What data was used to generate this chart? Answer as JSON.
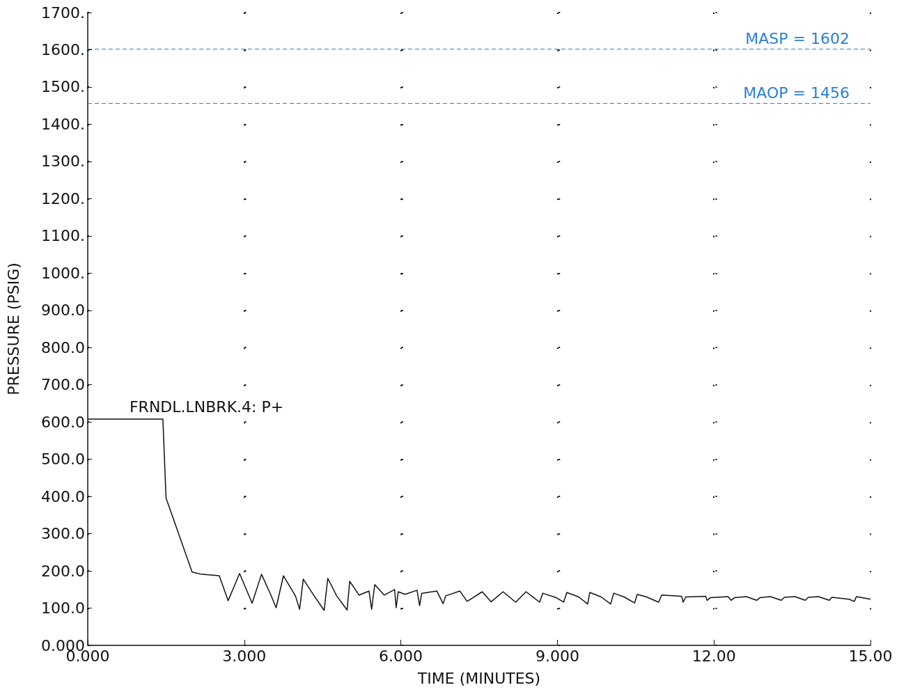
{
  "chart_data": {
    "type": "line",
    "xlabel": "TIME (MINUTES)",
    "ylabel": "PRESSURE (PSIG)",
    "xlim": [
      0,
      15
    ],
    "xticks": [
      {
        "value": 0,
        "label": "0.000"
      },
      {
        "value": 3,
        "label": "3.000"
      },
      {
        "value": 6,
        "label": "6.000"
      },
      {
        "value": 9,
        "label": "9.000"
      },
      {
        "value": 12,
        "label": "12.00"
      },
      {
        "value": 15,
        "label": "15.00"
      }
    ],
    "ylim": [
      0,
      1700
    ],
    "yticks": [
      {
        "value": 0,
        "label": "0.000"
      },
      {
        "value": 100,
        "label": "100.0"
      },
      {
        "value": 200,
        "label": "200.0"
      },
      {
        "value": 300,
        "label": "300.0"
      },
      {
        "value": 400,
        "label": "400.0"
      },
      {
        "value": 500,
        "label": "500.0"
      },
      {
        "value": 600,
        "label": "600.0"
      },
      {
        "value": 700,
        "label": "700.0"
      },
      {
        "value": 800,
        "label": "800.0"
      },
      {
        "value": 900,
        "label": "900.0"
      },
      {
        "value": 1000,
        "label": "1000."
      },
      {
        "value": 1100,
        "label": "1100."
      },
      {
        "value": 1200,
        "label": "1200."
      },
      {
        "value": 1300,
        "label": "1300."
      },
      {
        "value": 1400,
        "label": "1400."
      },
      {
        "value": 1500,
        "label": "1500."
      },
      {
        "value": 1600,
        "label": "1600."
      },
      {
        "value": 1700,
        "label": "1700."
      }
    ],
    "grid": true,
    "marker": "none",
    "line_style": "solid",
    "series": [
      {
        "color": "#111111",
        "x": [
          0,
          1.44,
          1.5,
          2.0,
          2.18,
          2.52,
          2.69,
          2.91,
          3.15,
          3.33,
          3.51,
          3.61,
          3.75,
          3.98,
          4.06,
          4.13,
          4.33,
          4.53,
          4.6,
          4.77,
          4.97,
          5.02,
          5.2,
          5.39,
          5.44,
          5.5,
          5.68,
          5.88,
          5.91,
          5.95,
          6.08,
          6.31,
          6.36,
          6.4,
          6.69,
          6.81,
          6.86,
          7.13,
          7.27,
          7.56,
          7.73,
          7.96,
          8.2,
          8.4,
          8.66,
          8.72,
          8.98,
          9.12,
          9.18,
          9.41,
          9.58,
          9.62,
          9.84,
          10.02,
          10.08,
          10.28,
          10.48,
          10.53,
          10.71,
          10.94,
          11.0,
          11.38,
          11.41,
          11.46,
          11.84,
          11.87,
          11.93,
          12.27,
          12.33,
          12.39,
          12.62,
          12.82,
          12.88,
          13.08,
          13.29,
          13.35,
          13.55,
          13.75,
          13.81,
          14.0,
          14.21,
          14.26,
          14.59,
          14.69,
          14.73,
          15.0
        ],
        "values": [
          608,
          608,
          396,
          197,
          191,
          187,
          120,
          193,
          113,
          191,
          135,
          101,
          187,
          133,
          97,
          178,
          135,
          94,
          180,
          133,
          95,
          172,
          135,
          146,
          97,
          163,
          135,
          150,
          101,
          144,
          137,
          148,
          107,
          140,
          146,
          112,
          133,
          146,
          118,
          144,
          117,
          144,
          116,
          144,
          116,
          140,
          128,
          116,
          142,
          130,
          111,
          142,
          130,
          111,
          140,
          130,
          114,
          137,
          130,
          116,
          135,
          132,
          116,
          130,
          132,
          121,
          128,
          131,
          121,
          128,
          131,
          121,
          128,
          131,
          121,
          129,
          131,
          121,
          129,
          131,
          121,
          129,
          124,
          118,
          131,
          124
        ]
      }
    ],
    "ref_lines": [
      {
        "axis": "y",
        "value": 1602,
        "label": "MASP = 1602",
        "color": "#2a7fd4",
        "line_style": "dashed"
      },
      {
        "axis": "y",
        "value": 1456,
        "label": "MAOP = 1456",
        "color": "#2a7fd4",
        "line_style": "dashed"
      }
    ],
    "annotations": [
      {
        "text": "FRNDL.LNBRK.4: P+",
        "x": 0.8,
        "y": 608
      }
    ]
  }
}
